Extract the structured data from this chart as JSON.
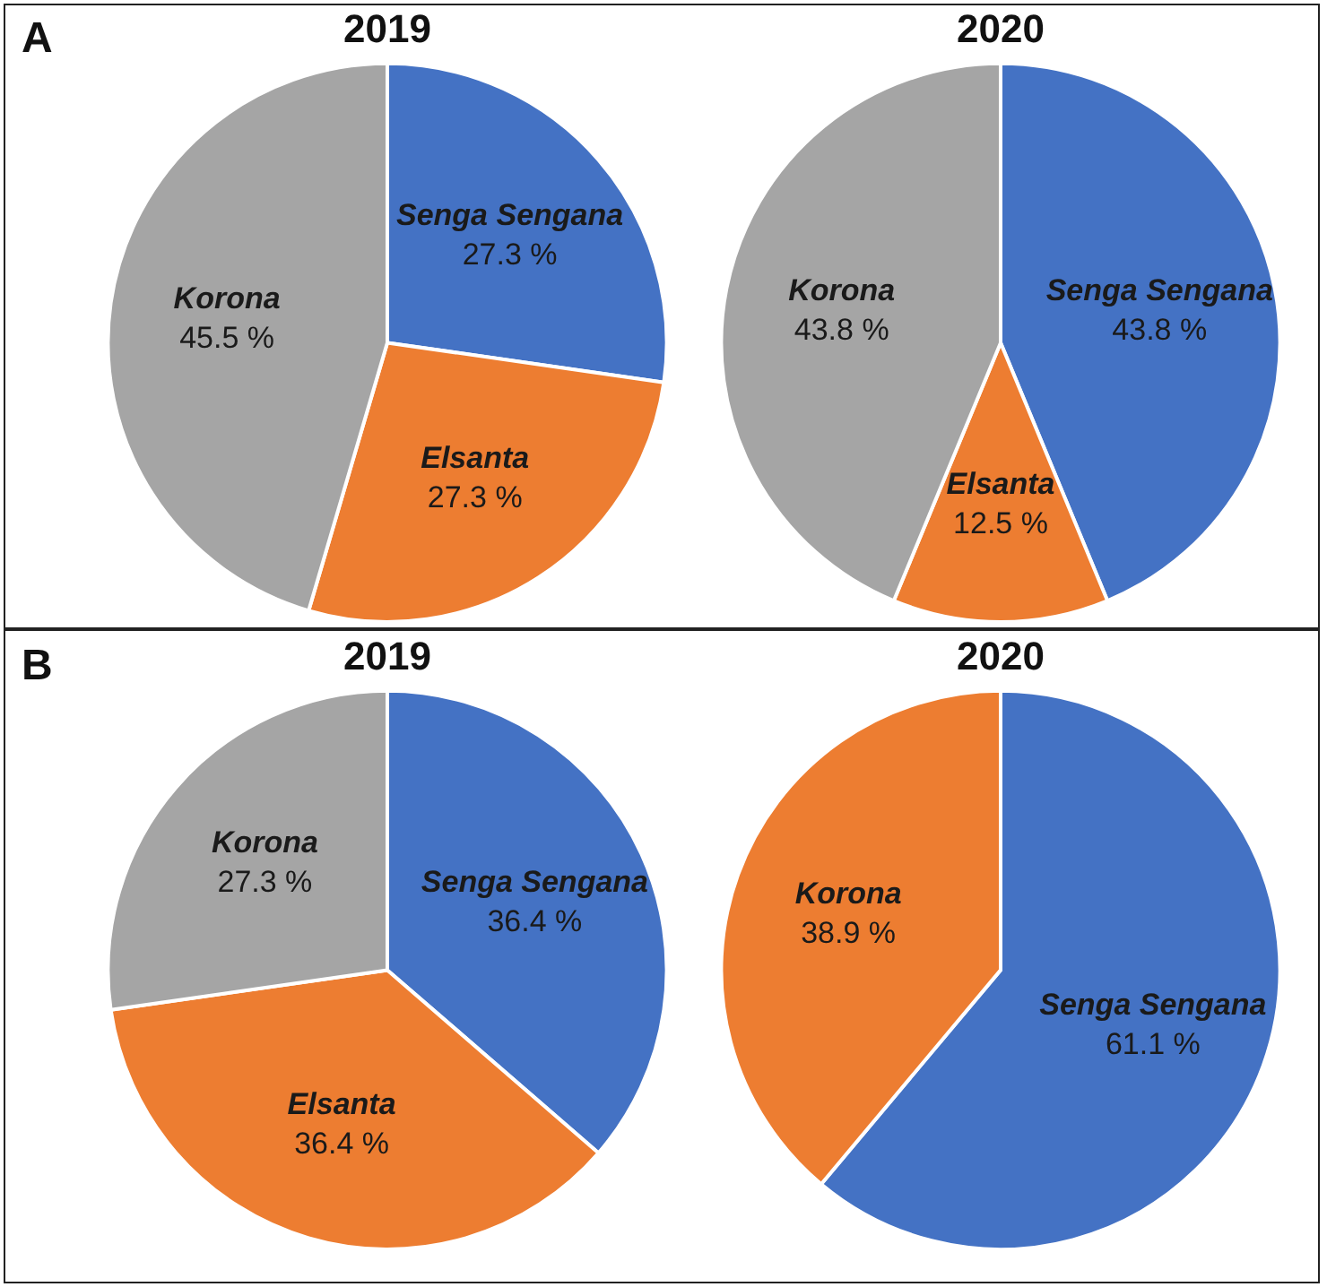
{
  "chart_data": [
    {
      "type": "pie",
      "title": "2019",
      "annotations": [
        "A"
      ],
      "categories": [
        "Senga Sengana",
        "Elsanta",
        "Korona"
      ],
      "values": [
        27.3,
        27.3,
        45.5
      ],
      "value_labels": [
        "27.3 %",
        "27.3 %",
        "45.5 %"
      ],
      "colors": [
        "#4472c4",
        "#ed7d31",
        "#a5a5a5"
      ],
      "legend": false
    },
    {
      "type": "pie",
      "title": "2020",
      "categories": [
        "Senga Sengana",
        "Elsanta",
        "Korona"
      ],
      "values": [
        43.8,
        12.5,
        43.8
      ],
      "value_labels": [
        "43.8 %",
        "12.5 %",
        "43.8 %"
      ],
      "colors": [
        "#4472c4",
        "#ed7d31",
        "#a5a5a5"
      ],
      "legend": false
    },
    {
      "type": "pie",
      "title": "2019",
      "annotations": [
        "B"
      ],
      "categories": [
        "Senga Sengana",
        "Elsanta",
        "Korona"
      ],
      "values": [
        36.4,
        36.4,
        27.3
      ],
      "value_labels": [
        "36.4 %",
        "36.4 %",
        "27.3 %"
      ],
      "colors": [
        "#4472c4",
        "#ed7d31",
        "#a5a5a5"
      ],
      "legend": false
    },
    {
      "type": "pie",
      "title": "2020",
      "categories": [
        "Senga Sengana",
        "Korona"
      ],
      "values": [
        61.1,
        38.9
      ],
      "value_labels": [
        "61.1 %",
        "38.9 %"
      ],
      "colors": [
        "#4472c4",
        "#ed7d31"
      ],
      "legend": false
    }
  ]
}
